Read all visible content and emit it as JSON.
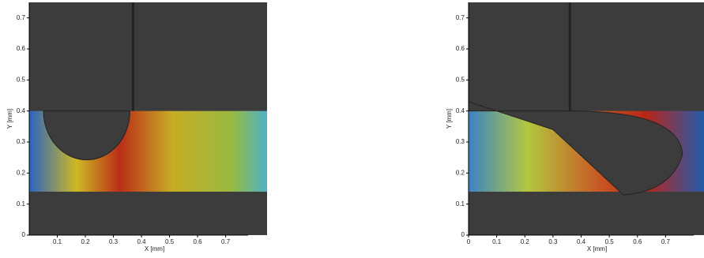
{
  "chart_data": [
    {
      "type": "image",
      "xlabel": "X [mm]",
      "ylabel": "Y [mm]",
      "xlim": [
        0,
        0.78
      ],
      "ylim": [
        0,
        0.75
      ],
      "xticks": [
        0.1,
        0.2,
        0.3,
        0.4,
        0.5,
        0.6,
        0.7
      ],
      "yticks": [
        0,
        0.1,
        0.2,
        0.3,
        0.4,
        0.5,
        0.6,
        0.7
      ]
    },
    {
      "type": "image",
      "xlabel": "X [mm]",
      "ylabel": "Y [mm]",
      "xlim": [
        0,
        0.8
      ],
      "ylim": [
        0,
        0.75
      ],
      "xticks": [
        0,
        0.1,
        0.2,
        0.3,
        0.4,
        0.5,
        0.6,
        0.7
      ],
      "yticks": [
        0,
        0.1,
        0.2,
        0.3,
        0.4,
        0.5,
        0.6,
        0.7
      ]
    }
  ]
}
